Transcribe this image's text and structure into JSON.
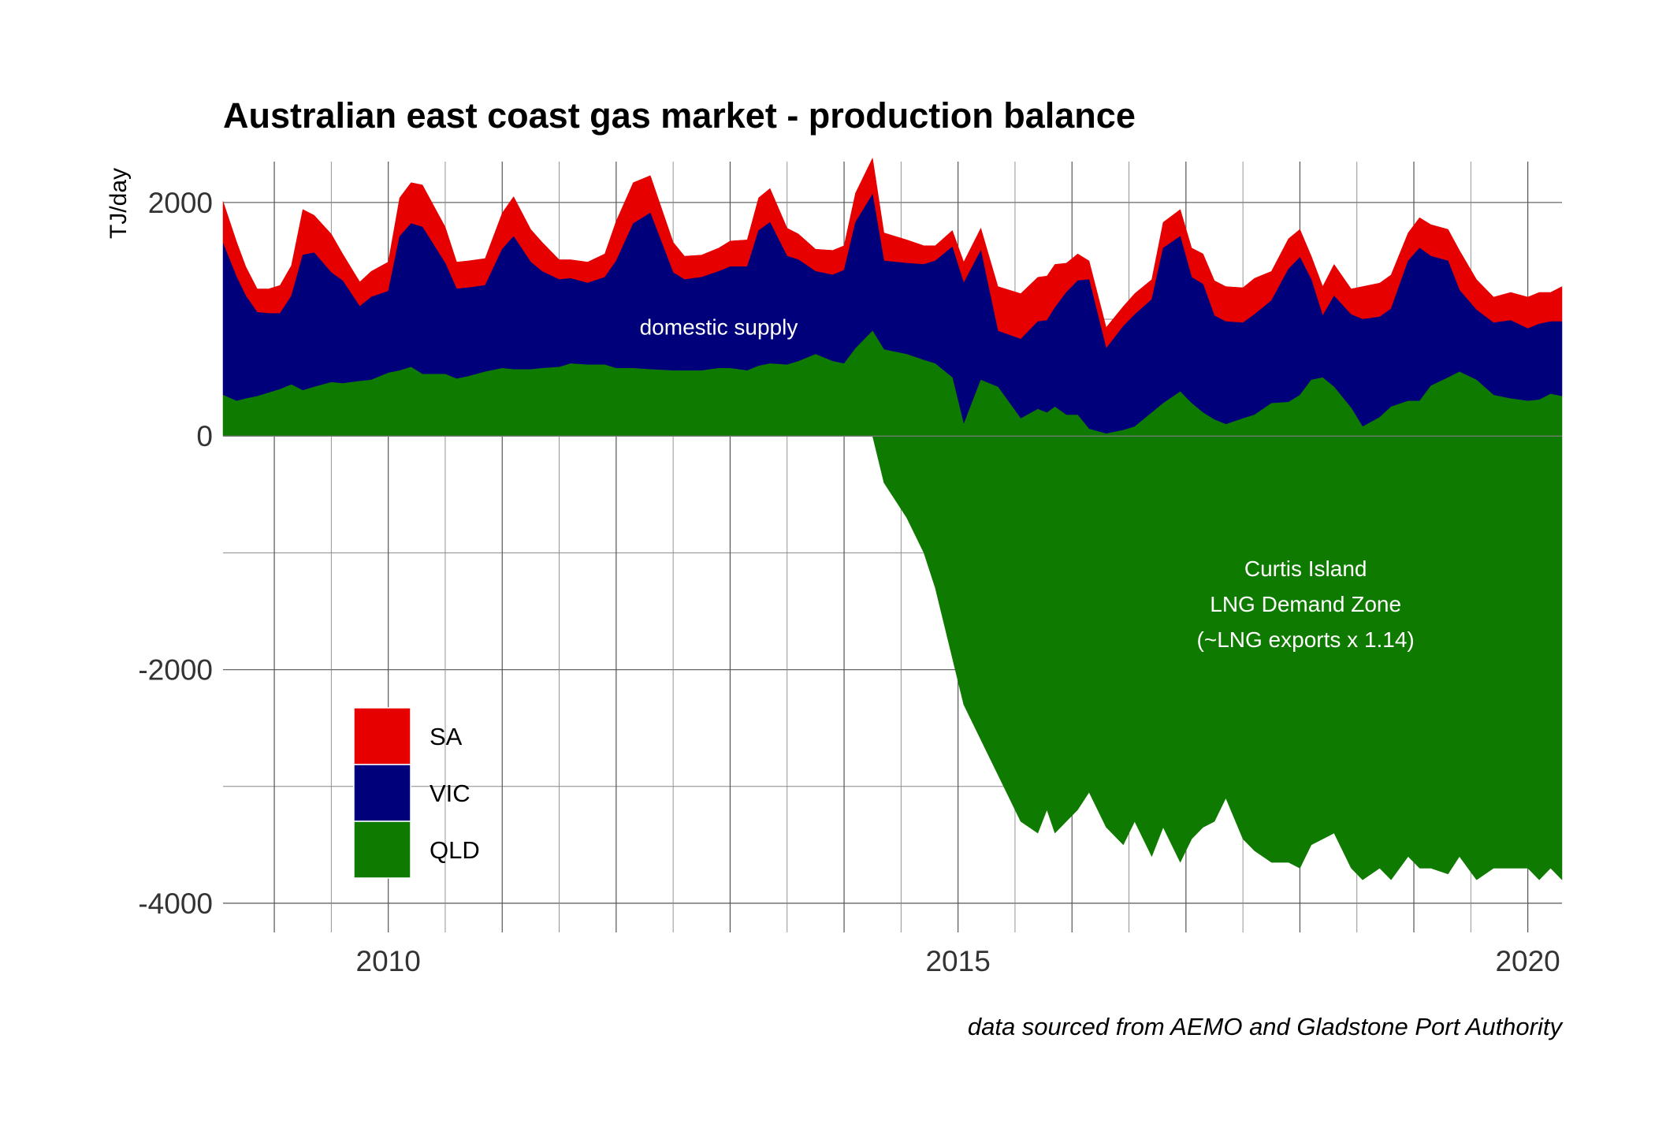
{
  "chart_data": {
    "type": "area",
    "title": "Australian east coast gas market - production balance",
    "ylabel": "TJ/day",
    "caption": "data sourced from AEMO and Gladstone Port Authority",
    "xlim": [
      2008.55,
      2020.3
    ],
    "ylim": [
      -4250,
      2350
    ],
    "y_ticks": [
      2000,
      0,
      -2000,
      -4000
    ],
    "y_tick_labels": [
      "2000",
      "0",
      "-2000",
      "-4000"
    ],
    "x_ticks": [
      2010,
      2015,
      2020
    ],
    "x_tick_labels": [
      "2010",
      "2015",
      "2020"
    ],
    "grid": true,
    "stacking": "stacked; QLD negative part shows Curtis Island LNG demand",
    "legend": {
      "position": "bottom-left",
      "items": [
        {
          "name": "SA",
          "color": "#e60000"
        },
        {
          "name": "VIC",
          "color": "#00007a"
        },
        {
          "name": "QLD",
          "color": "#0f7a00"
        }
      ]
    },
    "annotations": [
      {
        "text": "domestic supply",
        "x": 2012.9,
        "y": 870
      },
      {
        "lines": [
          "Curtis Island",
          "LNG Demand Zone",
          "(~LNG exports x 1.14)"
        ],
        "x": 2018.05,
        "y": -1200
      }
    ],
    "x": [
      2008.55,
      2008.67,
      2008.75,
      2008.85,
      2008.95,
      2009.05,
      2009.15,
      2009.25,
      2009.35,
      2009.5,
      2009.6,
      2009.75,
      2009.85,
      2010.0,
      2010.1,
      2010.2,
      2010.3,
      2010.5,
      2010.6,
      2010.7,
      2010.85,
      2011.0,
      2011.1,
      2011.25,
      2011.35,
      2011.5,
      2011.6,
      2011.75,
      2011.9,
      2012.0,
      2012.15,
      2012.3,
      2012.5,
      2012.6,
      2012.75,
      2012.9,
      2013.0,
      2013.15,
      2013.25,
      2013.35,
      2013.5,
      2013.6,
      2013.75,
      2013.9,
      2014.0,
      2014.1,
      2014.25,
      2014.35,
      2014.55,
      2014.7,
      2014.8,
      2014.95,
      2015.05,
      2015.2,
      2015.35,
      2015.55,
      2015.7,
      2015.78,
      2015.85,
      2015.95,
      2016.05,
      2016.15,
      2016.3,
      2016.45,
      2016.55,
      2016.7,
      2016.8,
      2016.95,
      2017.05,
      2017.15,
      2017.25,
      2017.35,
      2017.5,
      2017.6,
      2017.75,
      2017.9,
      2018.0,
      2018.1,
      2018.2,
      2018.3,
      2018.45,
      2018.55,
      2018.7,
      2018.8,
      2018.95,
      2019.05,
      2019.15,
      2019.3,
      2019.4,
      2019.55,
      2019.7,
      2019.85,
      2020.0,
      2020.1,
      2020.2,
      2020.3
    ],
    "series": [
      {
        "name": "QLD",
        "color": "#0f7a00",
        "values": [
          350,
          300,
          320,
          340,
          370,
          400,
          440,
          390,
          420,
          460,
          450,
          470,
          480,
          540,
          560,
          590,
          530,
          530,
          490,
          510,
          550,
          580,
          570,
          570,
          580,
          590,
          620,
          610,
          610,
          580,
          580,
          570,
          560,
          560,
          560,
          580,
          580,
          560,
          600,
          620,
          610,
          640,
          700,
          640,
          620,
          750,
          900,
          740,
          700,
          650,
          620,
          500,
          100,
          480,
          420,
          150,
          230,
          200,
          250,
          180,
          180,
          60,
          20,
          50,
          80,
          200,
          280,
          380,
          280,
          200,
          140,
          100,
          150,
          180,
          280,
          290,
          350,
          480,
          500,
          420,
          240,
          80,
          160,
          250,
          300,
          300,
          430,
          500,
          550,
          480,
          350,
          320,
          300,
          310,
          360,
          340
        ]
      },
      {
        "name": "QLD-LNG",
        "color": "#0f7a00",
        "values": [
          0,
          0,
          0,
          0,
          0,
          0,
          0,
          0,
          0,
          0,
          0,
          0,
          0,
          0,
          0,
          0,
          0,
          0,
          0,
          0,
          0,
          0,
          0,
          0,
          0,
          0,
          0,
          0,
          0,
          0,
          0,
          0,
          0,
          0,
          0,
          0,
          0,
          0,
          0,
          0,
          0,
          0,
          0,
          0,
          0,
          0,
          0,
          -400,
          -700,
          -1000,
          -1300,
          -1900,
          -2300,
          -2600,
          -2900,
          -3300,
          -3400,
          -3200,
          -3400,
          -3300,
          -3200,
          -3050,
          -3350,
          -3500,
          -3300,
          -3600,
          -3350,
          -3650,
          -3450,
          -3350,
          -3300,
          -3100,
          -3450,
          -3550,
          -3650,
          -3650,
          -3700,
          -3500,
          -3450,
          -3400,
          -3700,
          -3800,
          -3700,
          -3800,
          -3600,
          -3700,
          -3700,
          -3750,
          -3600,
          -3800,
          -3700,
          -3700,
          -3700,
          -3800,
          -3700,
          -3800
        ]
      },
      {
        "name": "VIC",
        "color": "#00007a",
        "values": [
          1300,
          1060,
          880,
          720,
          680,
          650,
          760,
          1160,
          1150,
          940,
          880,
          640,
          710,
          700,
          1150,
          1230,
          1260,
          950,
          770,
          760,
          740,
          1020,
          1140,
          920,
          830,
          750,
          730,
          700,
          750,
          920,
          1240,
          1340,
          840,
          780,
          800,
          830,
          870,
          890,
          1160,
          1210,
          930,
          870,
          710,
          740,
          800,
          1080,
          1170,
          760,
          780,
          820,
          880,
          1120,
          1210,
          1110,
          480,
          680,
          750,
          790,
          850,
          1050,
          1150,
          1280,
          730,
          890,
          960,
          970,
          1330,
          1330,
          1080,
          1100,
          890,
          880,
          820,
          860,
          880,
          1140,
          1180,
          860,
          530,
          780,
          800,
          920,
          860,
          840,
          1200,
          1310,
          1110,
          1000,
          700,
          600,
          620,
          670,
          620,
          650,
          620,
          640
        ]
      },
      {
        "name": "SA",
        "color": "#e60000",
        "values": [
          360,
          300,
          250,
          200,
          210,
          240,
          260,
          390,
          320,
          330,
          230,
          210,
          220,
          250,
          330,
          350,
          360,
          310,
          230,
          230,
          230,
          310,
          340,
          280,
          250,
          170,
          160,
          180,
          200,
          340,
          350,
          320,
          260,
          200,
          190,
          200,
          220,
          230,
          280,
          290,
          240,
          220,
          190,
          210,
          210,
          250,
          310,
          240,
          200,
          160,
          130,
          140,
          180,
          190,
          380,
          390,
          380,
          380,
          370,
          250,
          230,
          160,
          180,
          170,
          180,
          170,
          220,
          230,
          250,
          260,
          300,
          300,
          300,
          310,
          250,
          260,
          240,
          200,
          250,
          270,
          220,
          280,
          290,
          290,
          240,
          260,
          270,
          270,
          340,
          260,
          220,
          240,
          270,
          270,
          250,
          300
        ]
      }
    ]
  }
}
